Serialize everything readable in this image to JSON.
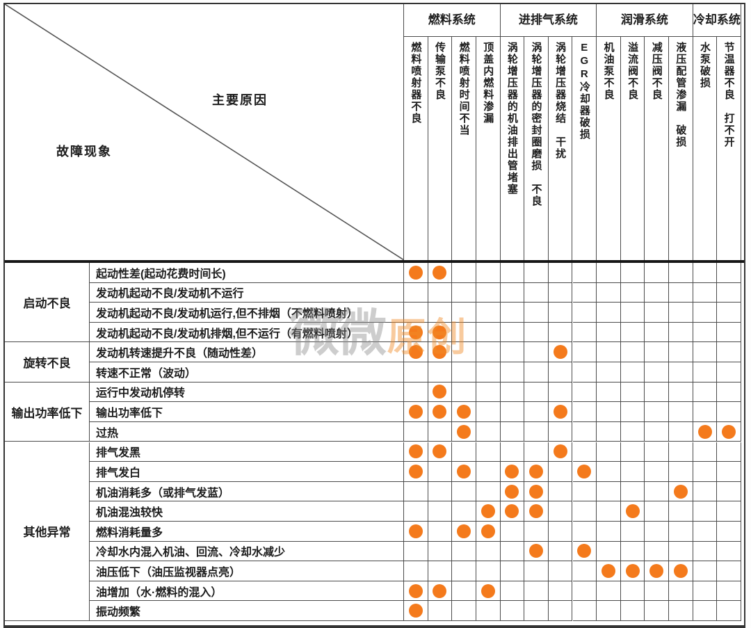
{
  "diagonal_cell": {
    "top_right_label": "主要原因",
    "bottom_left_label": "故障现象"
  },
  "column_groups": [
    {
      "label": "燃料系统",
      "span": 4
    },
    {
      "label": "进排气系统",
      "span": 4
    },
    {
      "label": "润滑系统",
      "span": 4
    },
    {
      "label": "冷却系统",
      "span": 2
    }
  ],
  "columns": [
    "燃料喷射器不良",
    "传输泵不良",
    "燃料喷射时间不当",
    "顶盖内燃料渗漏",
    "涡轮增压器的机油排出管堵塞",
    "涡轮增压器的密封圈磨损　不良",
    "涡轮增压器烧结　干扰",
    "EGR冷却器破损",
    "机油泵不良",
    "溢流阀不良",
    "减压阀不良",
    "液压配管渗漏　破损",
    "水泵破损",
    "节温器不良　打不开"
  ],
  "row_groups": [
    {
      "label": "启动不良",
      "rows": [
        {
          "label": "起动性差(起动花费时间长)",
          "dots": [
            1,
            2
          ]
        },
        {
          "label": "发动机起动不良/发动机不运行",
          "dots": []
        },
        {
          "label": "发动机起动不良/发动机运行,但不排烟（不燃料喷射）",
          "dots": []
        },
        {
          "label": "发动机起动不良/发动机排烟,但不运行（有燃料喷射）",
          "dots": [
            1,
            2
          ]
        }
      ]
    },
    {
      "label": "旋转不良",
      "rows": [
        {
          "label": "发动机转速提升不良（随动性差）",
          "dots": [
            1,
            2,
            7
          ]
        },
        {
          "label": "转速不正常（波动）",
          "dots": []
        }
      ]
    },
    {
      "label": "输出功率低下",
      "rows": [
        {
          "label": "运行中发动机停转",
          "dots": [
            2
          ]
        },
        {
          "label": "输出功率低下",
          "dots": [
            1,
            2,
            3,
            7
          ]
        },
        {
          "label": "过热",
          "dots": [
            3,
            13,
            14
          ]
        }
      ]
    },
    {
      "label": "其他异常",
      "rows": [
        {
          "label": "排气发黑",
          "dots": [
            1,
            2,
            7
          ]
        },
        {
          "label": "排气发白",
          "dots": [
            1,
            3,
            5,
            6,
            8
          ]
        },
        {
          "label": "机油消耗多（或排气发蓝）",
          "dots": [
            5,
            6,
            12
          ]
        },
        {
          "label": "机油混浊较快",
          "dots": [
            4,
            5,
            6,
            10
          ]
        },
        {
          "label": "燃料消耗量多",
          "dots": [
            1,
            3,
            4
          ]
        },
        {
          "label": "冷却水内混入机油、回流、冷却水减少",
          "dots": [
            6,
            8
          ]
        },
        {
          "label": "油压低下（油压监视器点亮）",
          "dots": [
            9,
            10,
            11,
            12
          ]
        },
        {
          "label": "油增加（水·燃料的混入）",
          "dots": [
            1,
            2,
            4
          ]
        },
        {
          "label": "振动频繁",
          "dots": [
            1
          ]
        }
      ]
    }
  ],
  "watermark": {
    "part1": "微微",
    "part2": "原创"
  },
  "colors": {
    "dot": "#f47a1c",
    "grid_line": "#4a4a4a",
    "thick_line": "#161616",
    "watermark_gray": "#8a8a8a",
    "watermark_orange": "#f08c28"
  }
}
